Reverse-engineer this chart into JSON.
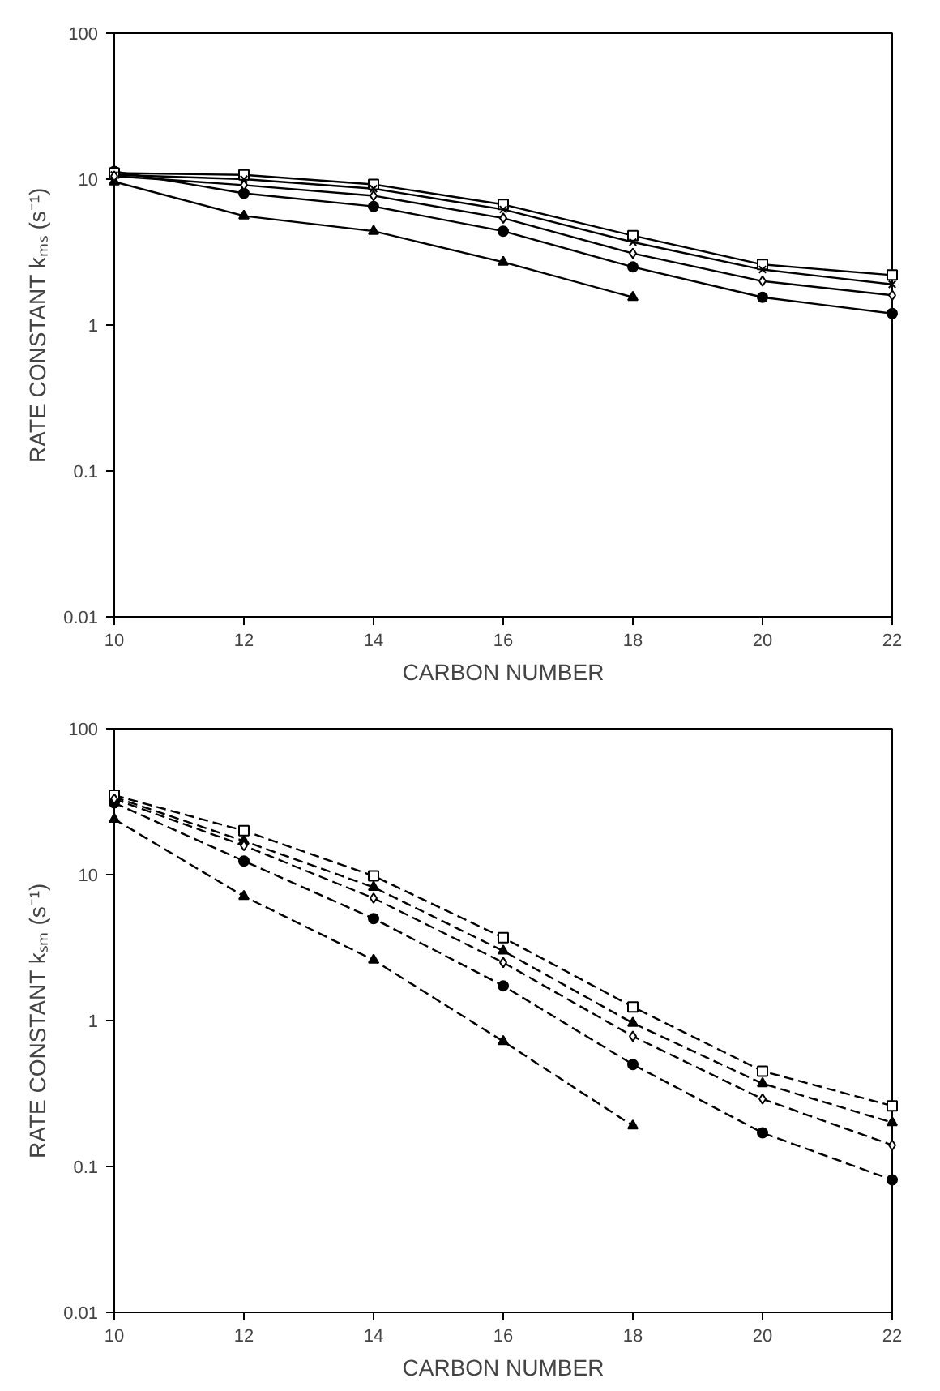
{
  "chart_data": [
    {
      "type": "line",
      "xlabel": "CARBON NUMBER",
      "ylabel": "RATE CONSTANT kₘₛ (s⁻¹)",
      "log": "y",
      "line_style": "solid",
      "x": [
        10,
        12,
        14,
        16,
        18,
        20,
        22
      ],
      "xlim": [
        10,
        22
      ],
      "xticks": [
        10,
        12,
        14,
        16,
        18,
        20,
        22
      ],
      "ylim": [
        0.01,
        100
      ],
      "yticks": [
        0.01,
        0.1,
        1,
        10,
        100
      ],
      "series": [
        {
          "color": "#000000",
          "marker": "square",
          "values": [
            11,
            10.7,
            9.2,
            6.7,
            4.1,
            2.6,
            2.2
          ]
        },
        {
          "color": "#000000",
          "marker": "cross",
          "values": [
            10.7,
            10,
            8.6,
            6.2,
            3.7,
            2.4,
            1.9
          ]
        },
        {
          "color": "#000000",
          "marker": "diamond",
          "values": [
            10.5,
            9.1,
            7.7,
            5.4,
            3.1,
            2.0,
            1.6
          ]
        },
        {
          "color": "#000000",
          "marker": "circle",
          "values": [
            11.3,
            8.0,
            6.5,
            4.4,
            2.5,
            1.55,
            1.2
          ]
        },
        {
          "color": "#000000",
          "marker": "triangle",
          "values": [
            9.6,
            5.6,
            4.4,
            2.7,
            1.55,
            null,
            null
          ]
        }
      ]
    },
    {
      "type": "line",
      "xlabel": "CARBON NUMBER",
      "ylabel": "RATE CONSTANT kₛₘ (s⁻¹)",
      "log": "y",
      "line_style": "dashed",
      "x": [
        10,
        12,
        14,
        16,
        18,
        20,
        22
      ],
      "xlim": [
        10,
        22
      ],
      "xticks": [
        10,
        12,
        14,
        16,
        18,
        20,
        22
      ],
      "ylim": [
        0.01,
        100
      ],
      "yticks": [
        0.01,
        0.1,
        1,
        10,
        100
      ],
      "series": [
        {
          "color": "#000000",
          "marker": "square",
          "values": [
            35,
            20,
            9.8,
            3.7,
            1.24,
            0.45,
            0.26
          ]
        },
        {
          "color": "#000000",
          "marker": "triangle",
          "values": [
            34,
            17,
            8.2,
            3.0,
            0.96,
            0.37,
            0.2
          ]
        },
        {
          "color": "#000000",
          "marker": "diamond",
          "values": [
            33,
            15.8,
            6.9,
            2.5,
            0.78,
            0.29,
            0.14
          ]
        },
        {
          "color": "#000000",
          "marker": "circle",
          "values": [
            31,
            12.4,
            5.0,
            1.73,
            0.5,
            0.17,
            0.081
          ]
        },
        {
          "color": "#000000",
          "marker": "triangle",
          "values": [
            24,
            7.1,
            2.6,
            0.72,
            0.19,
            null,
            null
          ]
        }
      ]
    }
  ]
}
